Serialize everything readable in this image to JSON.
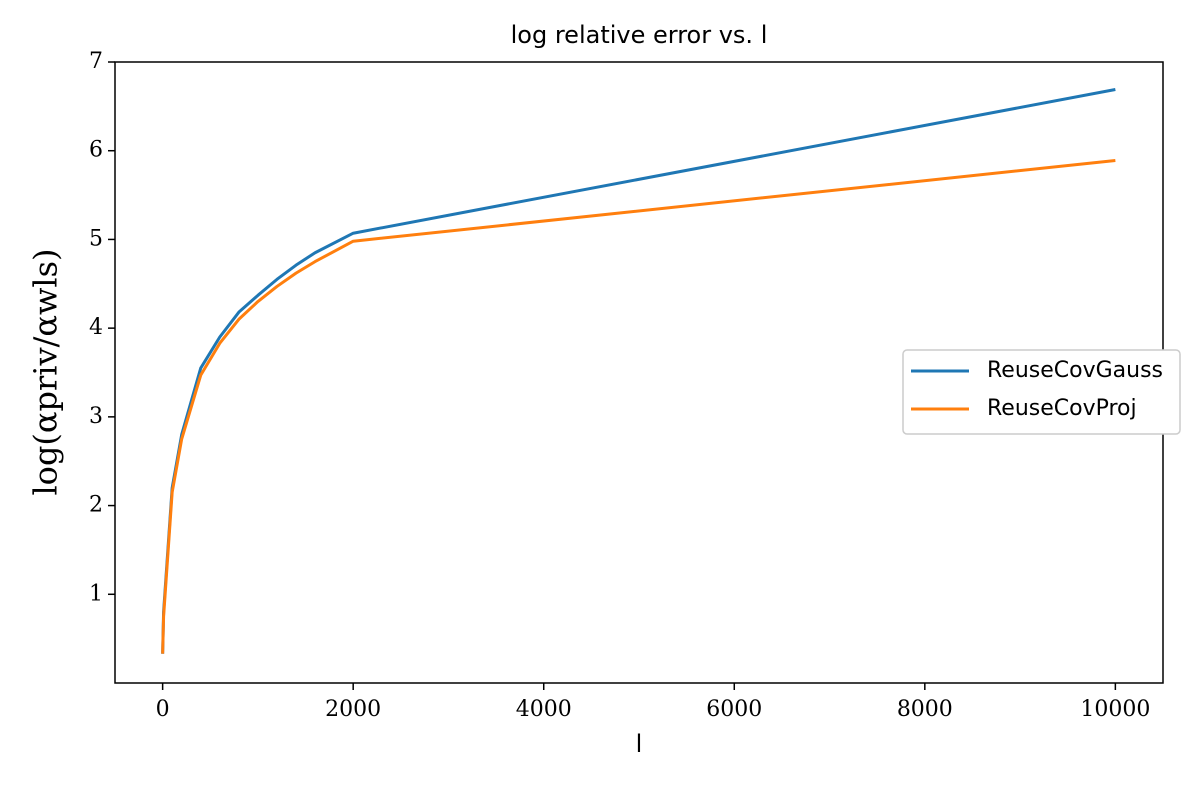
{
  "chart_data": {
    "type": "line",
    "title": "log relative error vs. l",
    "x_label": "l",
    "y_label": "log(αpriv/αwls)",
    "x": [
      0,
      10,
      100,
      200,
      400,
      600,
      800,
      1000,
      1200,
      1400,
      1600,
      2000,
      10000
    ],
    "series": [
      {
        "name": "ReuseCovGauss",
        "color": "#1f77b4",
        "values": [
          0.33,
          0.8,
          2.2,
          2.8,
          3.55,
          3.9,
          4.18,
          4.37,
          4.55,
          4.71,
          4.85,
          5.07,
          6.69
        ]
      },
      {
        "name": "ReuseCovProj",
        "color": "#ff7f0e",
        "values": [
          0.33,
          0.75,
          2.15,
          2.75,
          3.47,
          3.83,
          4.1,
          4.3,
          4.47,
          4.62,
          4.75,
          4.98,
          5.89
        ]
      }
    ],
    "xlim": [
      -500,
      10500
    ],
    "ylim": [
      0,
      7
    ],
    "xticks": [
      0,
      2000,
      4000,
      6000,
      8000,
      10000
    ],
    "yticks": [
      1,
      2,
      3,
      4,
      5,
      6,
      7
    ],
    "legend": "right"
  }
}
